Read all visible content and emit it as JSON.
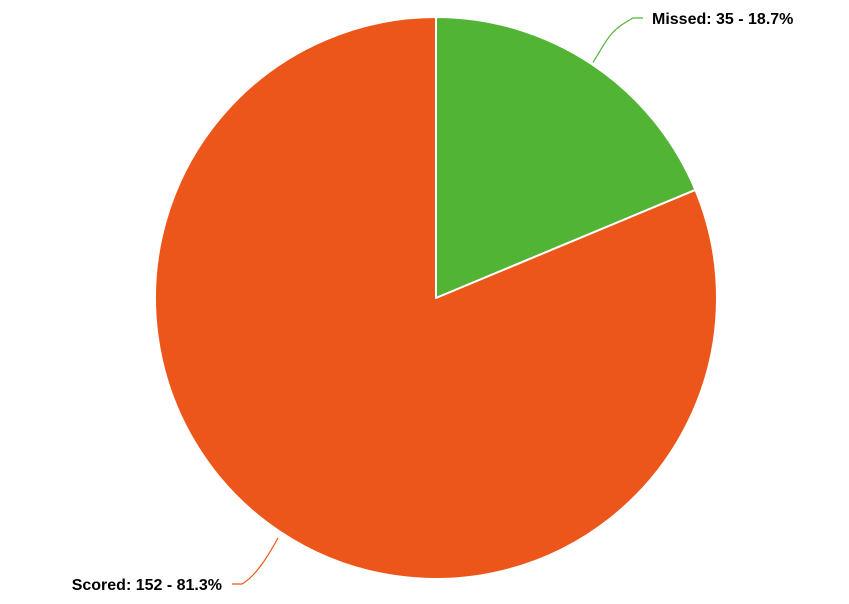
{
  "chart_data": {
    "type": "pie",
    "title": "",
    "slices": [
      {
        "label": "Missed",
        "value": 35,
        "percent": 18.7,
        "color": "#52b434"
      },
      {
        "label": "Scored",
        "value": 152,
        "percent": 81.3,
        "color": "#ec561b"
      }
    ],
    "data_labels": [
      "Missed: 35 - 18.7%",
      "Scored: 152 - 81.3%"
    ],
    "start_angle": "12 o'clock",
    "direction": "clockwise",
    "legend": "none"
  }
}
